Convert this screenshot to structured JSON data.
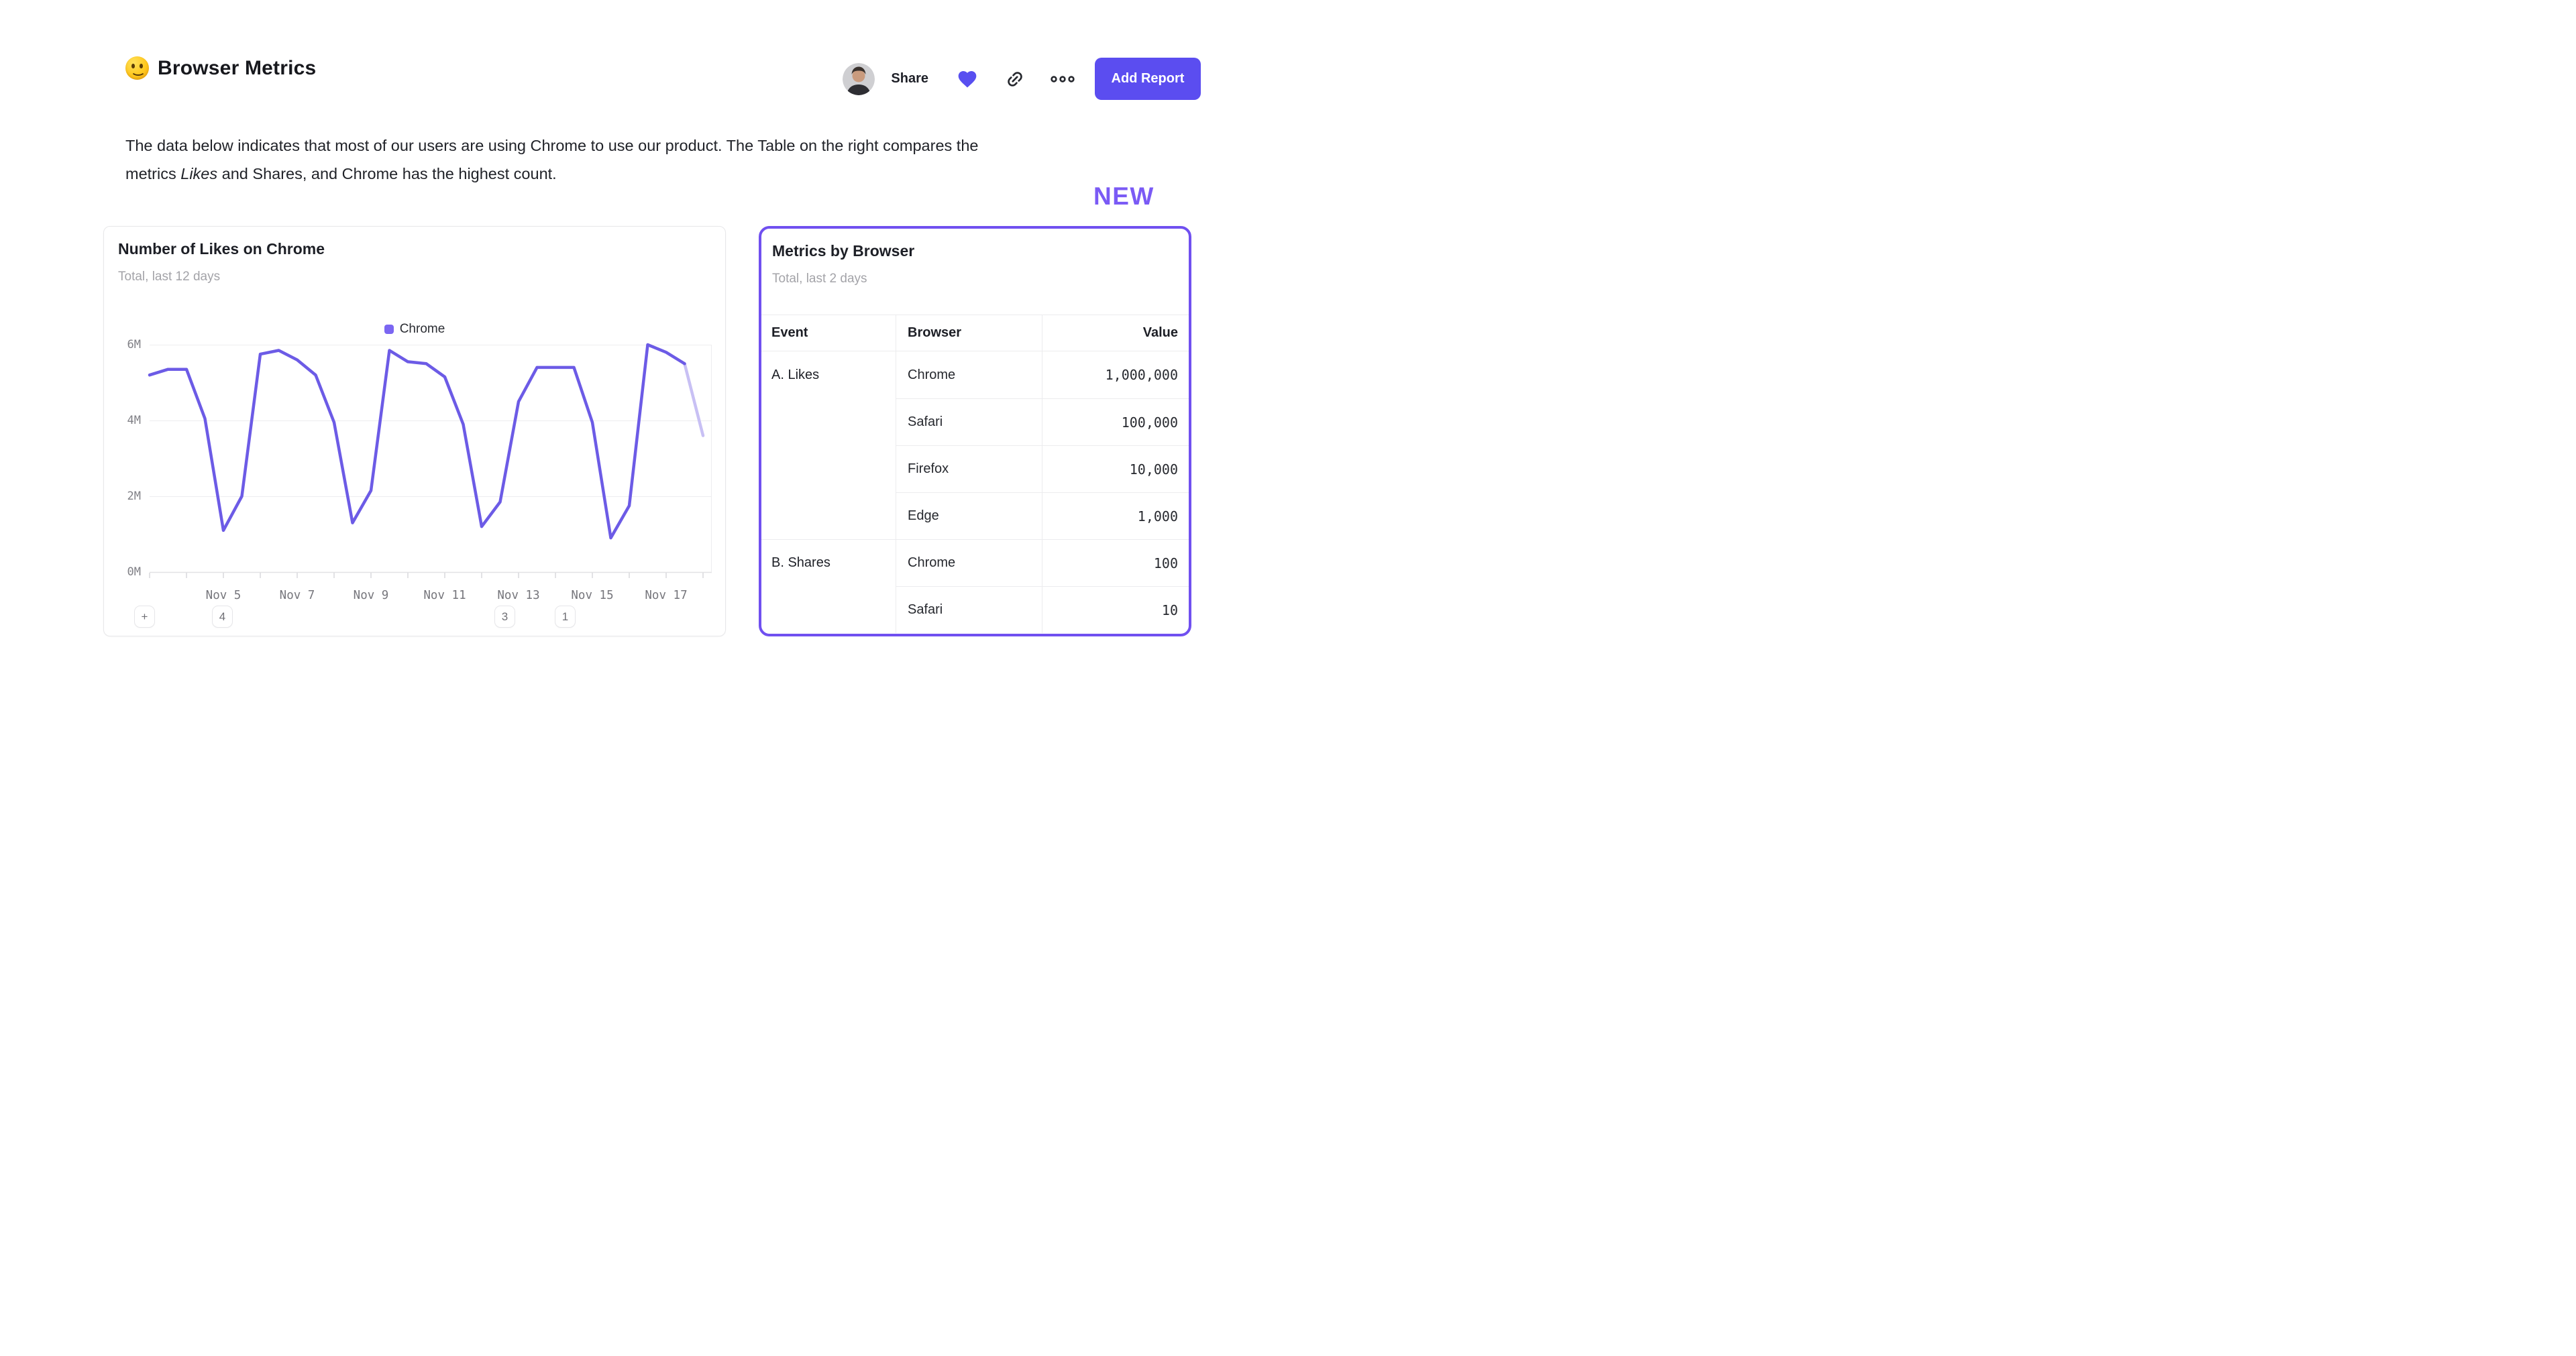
{
  "header": {
    "emoji": "🙂",
    "title": "Browser Metrics",
    "share_label": "Share",
    "add_report_label": "Add Report"
  },
  "description": {
    "line1": "The data below indicates that most of our users are using Chrome to use our product. The Table on the right compares the",
    "line2_pre": "metrics ",
    "line2_italic": "Likes",
    "line2_post": " and Shares, and Chrome has the highest count."
  },
  "new_badge": "NEW",
  "likes_card": {
    "title": "Number of Likes on Chrome",
    "subtitle": "Total, last 12 days",
    "chips": [
      "+",
      "4",
      "3",
      "1"
    ]
  },
  "chart_data": {
    "type": "line",
    "title": "Number of Likes on Chrome",
    "subtitle": "Total, last 12 days",
    "legend_position": "top-center",
    "grid": "horizontal",
    "x_range": [
      "Nov 3",
      "Nov 18"
    ],
    "points_per_day": 2,
    "x_tick_labels": [
      "Nov 5",
      "Nov 7",
      "Nov 9",
      "Nov 11",
      "Nov 13",
      "Nov 15",
      "Nov 17"
    ],
    "x_tick_indices": [
      4,
      8,
      12,
      16,
      20,
      24,
      28
    ],
    "y_tick_labels": [
      "6M",
      "4M",
      "2M",
      "0M"
    ],
    "ylim_millions": [
      0,
      6
    ],
    "series": [
      {
        "name": "Chrome",
        "values_millions": [
          5.2,
          5.35,
          5.35,
          4.05,
          1.1,
          2.0,
          5.75,
          5.85,
          5.6,
          5.2,
          3.95,
          1.3,
          2.15,
          5.85,
          5.55,
          5.5,
          5.15,
          3.9,
          1.2,
          1.85,
          4.5,
          5.4,
          5.4,
          5.4,
          3.95,
          0.9,
          1.75,
          6.0,
          5.8,
          5.5,
          3.6
        ]
      }
    ],
    "incomplete_tail_points": 1,
    "line_color": "#6c5be6",
    "faded_tail_color": "#c8c0f4",
    "legend_swatch_color": "#7b66f2"
  },
  "metrics_card": {
    "title": "Metrics by Browser",
    "subtitle": "Total, last 2 days",
    "columns": [
      "Event",
      "Browser",
      "Value"
    ],
    "groups": [
      {
        "event": "A. Likes",
        "rows": [
          [
            "Chrome",
            "1,000,000"
          ],
          [
            "Safari",
            "100,000"
          ],
          [
            "Firefox",
            "10,000"
          ],
          [
            "Edge",
            "1,000"
          ]
        ]
      },
      {
        "event": "B. Shares",
        "rows": [
          [
            "Chrome",
            "100"
          ],
          [
            "Safari",
            "10"
          ]
        ]
      }
    ]
  },
  "colors": {
    "accent_button": "#5b4df0",
    "heart": "#584ff0",
    "new_badge": "#7a5af5",
    "metrics_card_border": "#7050f0",
    "chart_line": "#6c5be6",
    "chart_line_faded": "#c8c0f4",
    "subtitle_gray": "#a3a3a8",
    "gridline": "#ededef"
  }
}
